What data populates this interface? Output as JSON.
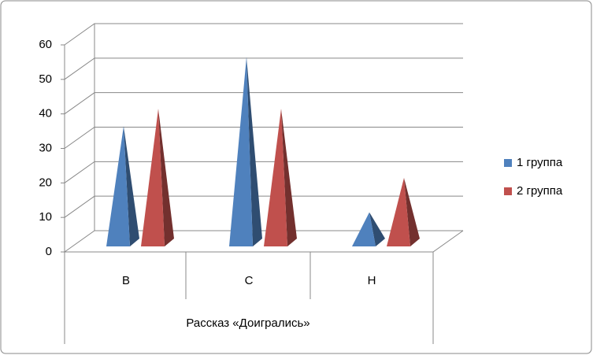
{
  "chart_data": {
    "type": "pyramid",
    "categories": [
      "В",
      "С",
      "Н"
    ],
    "xlabel": "Рассказ «Доигрались»",
    "series": [
      {
        "name": "1 группа",
        "color": "#4f81bd",
        "values": [
          35,
          55,
          10
        ]
      },
      {
        "name": "2 группа",
        "color": "#c0504d",
        "values": [
          40,
          40,
          20
        ]
      }
    ],
    "ylim": [
      0,
      60
    ],
    "yticks": [
      0,
      10,
      20,
      30,
      40,
      50,
      60
    ],
    "grid": true,
    "legend": "right"
  }
}
